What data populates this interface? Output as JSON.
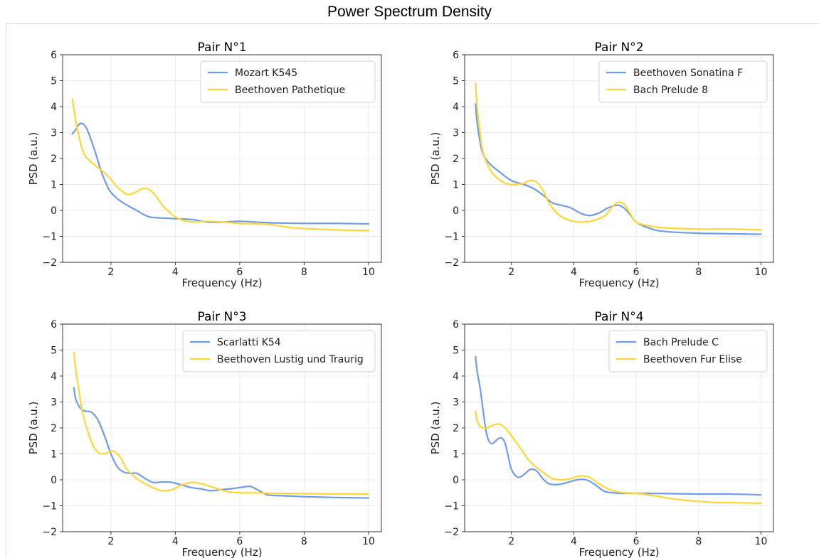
{
  "figure": {
    "title": "Power Spectrum Density"
  },
  "colors": {
    "series_a": "#6f9be8",
    "series_b": "#ffd633",
    "grid": "#ebebeb",
    "axis": "#333333"
  },
  "chart_data": [
    {
      "type": "line",
      "title": "Pair N°1",
      "xlabel": "Frequency (Hz)",
      "ylabel": "PSD (a.u.)",
      "xlim": [
        0.5,
        10.4
      ],
      "ylim": [
        -2,
        6
      ],
      "xticks": [
        2,
        4,
        6,
        8,
        10
      ],
      "yticks": [
        -2,
        -1,
        0,
        1,
        2,
        3,
        4,
        5,
        6
      ],
      "grid": true,
      "legend": "upper right",
      "series": [
        {
          "name": "Mozart K545",
          "color": "#6f9be8",
          "x": [
            0.8,
            0.9,
            1.0,
            1.1,
            1.2,
            1.3,
            1.5,
            1.7,
            1.9,
            2.0,
            2.2,
            2.5,
            2.8,
            3.0,
            3.2,
            3.4,
            3.7,
            4.0,
            4.5,
            5.0,
            5.5,
            6.0,
            6.5,
            7.0,
            8.0,
            9.0,
            10.0
          ],
          "y": [
            2.95,
            3.1,
            3.3,
            3.35,
            3.25,
            3.0,
            2.3,
            1.5,
            0.9,
            0.7,
            0.45,
            0.2,
            0.0,
            -0.15,
            -0.25,
            -0.28,
            -0.3,
            -0.32,
            -0.35,
            -0.45,
            -0.45,
            -0.42,
            -0.45,
            -0.48,
            -0.5,
            -0.5,
            -0.52
          ]
        },
        {
          "name": "Beethoven Pathetique",
          "color": "#ffd633",
          "x": [
            0.8,
            0.9,
            1.0,
            1.1,
            1.2,
            1.4,
            1.6,
            1.8,
            2.0,
            2.2,
            2.5,
            2.8,
            3.0,
            3.2,
            3.4,
            3.6,
            3.8,
            4.0,
            4.3,
            4.6,
            5.0,
            5.5,
            6.0,
            6.5,
            7.0,
            7.5,
            8.0,
            9.0,
            10.0
          ],
          "y": [
            4.3,
            3.5,
            2.9,
            2.4,
            2.1,
            1.85,
            1.65,
            1.45,
            1.2,
            0.9,
            0.62,
            0.72,
            0.85,
            0.8,
            0.55,
            0.2,
            -0.05,
            -0.25,
            -0.4,
            -0.45,
            -0.42,
            -0.45,
            -0.5,
            -0.52,
            -0.55,
            -0.65,
            -0.7,
            -0.75,
            -0.78
          ]
        }
      ]
    },
    {
      "type": "line",
      "title": "Pair N°2",
      "xlabel": "Frequency (Hz)",
      "ylabel": "PSD (a.u.)",
      "xlim": [
        0.5,
        10.4
      ],
      "ylim": [
        -2,
        6
      ],
      "xticks": [
        2,
        4,
        6,
        8,
        10
      ],
      "yticks": [
        -2,
        -1,
        0,
        1,
        2,
        3,
        4,
        5,
        6
      ],
      "grid": true,
      "legend": "upper right",
      "series": [
        {
          "name": "Beethoven Sonatina F",
          "color": "#6f9be8",
          "x": [
            0.85,
            0.9,
            1.0,
            1.1,
            1.3,
            1.6,
            2.0,
            2.4,
            2.7,
            3.0,
            3.3,
            3.6,
            3.9,
            4.2,
            4.5,
            4.8,
            5.1,
            5.4,
            5.6,
            5.8,
            6.0,
            6.5,
            7.0,
            8.0,
            9.0,
            10.0
          ],
          "y": [
            4.1,
            3.4,
            2.6,
            2.15,
            1.8,
            1.5,
            1.15,
            1.0,
            0.85,
            0.6,
            0.3,
            0.2,
            0.1,
            -0.1,
            -0.2,
            -0.1,
            0.1,
            0.2,
            0.1,
            -0.15,
            -0.45,
            -0.72,
            -0.82,
            -0.88,
            -0.9,
            -0.92
          ]
        },
        {
          "name": "Bach Prelude 8",
          "color": "#ffd633",
          "x": [
            0.85,
            0.9,
            1.0,
            1.1,
            1.3,
            1.5,
            1.8,
            2.0,
            2.2,
            2.4,
            2.6,
            2.8,
            3.0,
            3.2,
            3.5,
            3.8,
            4.2,
            4.6,
            5.0,
            5.2,
            5.4,
            5.6,
            5.8,
            6.0,
            6.5,
            7.0,
            7.5,
            8.0,
            9.0,
            10.0
          ],
          "y": [
            4.9,
            4.0,
            2.9,
            2.2,
            1.6,
            1.3,
            1.05,
            1.0,
            1.0,
            1.05,
            1.15,
            1.1,
            0.8,
            0.3,
            -0.15,
            -0.35,
            -0.45,
            -0.4,
            -0.2,
            0.1,
            0.3,
            0.25,
            -0.1,
            -0.45,
            -0.62,
            -0.68,
            -0.7,
            -0.72,
            -0.72,
            -0.75
          ]
        }
      ]
    },
    {
      "type": "line",
      "title": "Pair N°3",
      "xlabel": "Frequency (Hz)",
      "ylabel": "PSD (a.u.)",
      "xlim": [
        0.5,
        10.4
      ],
      "ylim": [
        -2,
        6
      ],
      "xticks": [
        2,
        4,
        6,
        8,
        10
      ],
      "yticks": [
        -2,
        -1,
        0,
        1,
        2,
        3,
        4,
        5,
        6
      ],
      "grid": true,
      "legend": "upper right",
      "series": [
        {
          "name": "Scarlatti K54",
          "color": "#6f9be8",
          "x": [
            0.85,
            0.9,
            1.0,
            1.1,
            1.2,
            1.4,
            1.6,
            1.8,
            2.0,
            2.2,
            2.4,
            2.6,
            2.8,
            3.0,
            3.3,
            3.6,
            3.9,
            4.2,
            4.5,
            4.8,
            5.1,
            5.4,
            5.7,
            6.0,
            6.3,
            6.5,
            6.8,
            7.0,
            7.5,
            8.0,
            9.0,
            10.0
          ],
          "y": [
            3.55,
            3.15,
            2.85,
            2.7,
            2.65,
            2.6,
            2.3,
            1.7,
            1.0,
            0.5,
            0.3,
            0.25,
            0.25,
            0.1,
            -0.1,
            -0.08,
            -0.1,
            -0.2,
            -0.3,
            -0.35,
            -0.42,
            -0.38,
            -0.35,
            -0.3,
            -0.25,
            -0.35,
            -0.55,
            -0.6,
            -0.62,
            -0.65,
            -0.68,
            -0.7
          ]
        },
        {
          "name": "Beethoven Lustig und Traurig",
          "color": "#ffd633",
          "x": [
            0.85,
            0.9,
            1.0,
            1.1,
            1.3,
            1.5,
            1.7,
            1.9,
            2.1,
            2.3,
            2.5,
            2.8,
            3.0,
            3.3,
            3.6,
            3.9,
            4.2,
            4.5,
            4.8,
            5.2,
            5.6,
            6.0,
            6.5,
            7.0,
            8.0,
            9.0,
            10.0
          ],
          "y": [
            4.9,
            4.3,
            3.5,
            2.7,
            1.8,
            1.2,
            1.0,
            1.05,
            1.1,
            0.85,
            0.4,
            0.05,
            -0.1,
            -0.3,
            -0.42,
            -0.38,
            -0.2,
            -0.1,
            -0.15,
            -0.3,
            -0.45,
            -0.5,
            -0.5,
            -0.52,
            -0.53,
            -0.55,
            -0.55
          ]
        }
      ]
    },
    {
      "type": "line",
      "title": "Pair N°4",
      "xlabel": "Frequency (Hz)",
      "ylabel": "PSD (a.u.)",
      "xlim": [
        0.5,
        10.4
      ],
      "ylim": [
        -2,
        6
      ],
      "xticks": [
        2,
        4,
        6,
        8,
        10
      ],
      "yticks": [
        -2,
        -1,
        0,
        1,
        2,
        3,
        4,
        5,
        6
      ],
      "grid": true,
      "legend": "upper right",
      "series": [
        {
          "name": "Bach Prelude C",
          "color": "#6f9be8",
          "x": [
            0.85,
            0.9,
            1.0,
            1.1,
            1.2,
            1.3,
            1.4,
            1.5,
            1.6,
            1.7,
            1.8,
            1.9,
            2.0,
            2.2,
            2.4,
            2.6,
            2.8,
            3.0,
            3.2,
            3.5,
            3.8,
            4.1,
            4.4,
            4.7,
            5.0,
            5.5,
            6.0,
            7.0,
            8.0,
            9.0,
            10.0
          ],
          "y": [
            4.75,
            4.2,
            3.5,
            2.6,
            1.8,
            1.45,
            1.4,
            1.5,
            1.6,
            1.6,
            1.4,
            0.9,
            0.4,
            0.1,
            0.2,
            0.4,
            0.35,
            0.05,
            -0.15,
            -0.18,
            -0.1,
            0.0,
            0.0,
            -0.2,
            -0.45,
            -0.52,
            -0.52,
            -0.53,
            -0.55,
            -0.55,
            -0.58
          ]
        },
        {
          "name": "Beethoven Fur Elise",
          "color": "#ffd633",
          "x": [
            0.85,
            0.9,
            1.0,
            1.1,
            1.2,
            1.4,
            1.6,
            1.8,
            2.0,
            2.3,
            2.6,
            3.0,
            3.3,
            3.6,
            3.9,
            4.2,
            4.5,
            4.8,
            5.2,
            5.6,
            6.0,
            6.5,
            7.0,
            7.5,
            8.0,
            8.5,
            9.0,
            10.0
          ],
          "y": [
            2.65,
            2.3,
            2.05,
            2.0,
            2.0,
            2.1,
            2.15,
            2.0,
            1.7,
            1.2,
            0.7,
            0.3,
            0.05,
            0.0,
            0.05,
            0.15,
            0.1,
            -0.15,
            -0.4,
            -0.5,
            -0.52,
            -0.6,
            -0.7,
            -0.78,
            -0.83,
            -0.87,
            -0.88,
            -0.9
          ]
        }
      ]
    }
  ]
}
